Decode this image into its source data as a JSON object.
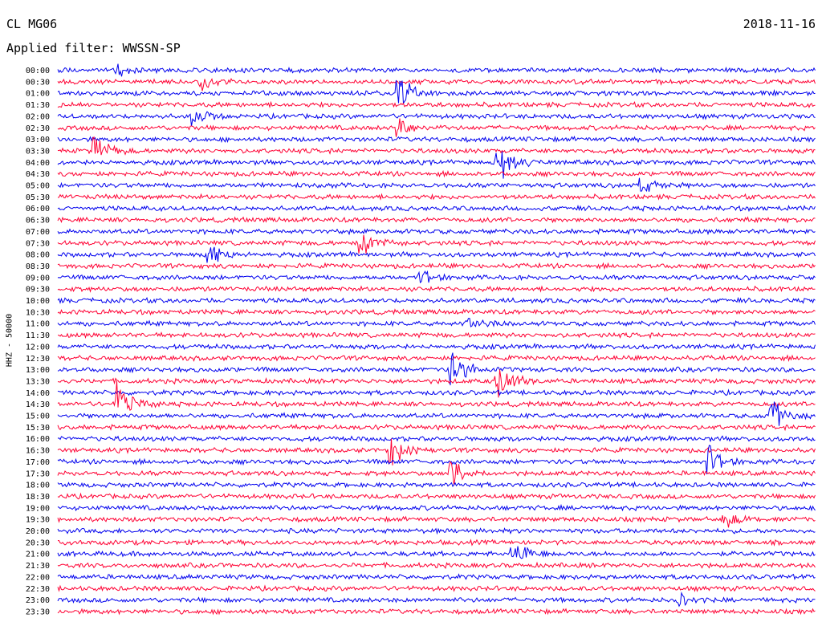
{
  "header": {
    "station": "CL MG06",
    "date": "2018-11-16",
    "filter": "Applied filter: WWSSN-SP"
  },
  "colors": {
    "blue": "#0000ee",
    "red": "#ff0033"
  },
  "chart_data": {
    "type": "line",
    "title": "CL MG06",
    "subtitle": "Applied filter: WWSSN-SP",
    "ylabel": "HHZ - 50000",
    "xlabel": "",
    "tick_labels": [
      "00:00",
      "00:30",
      "01:00",
      "01:30",
      "02:00",
      "02:30",
      "03:00",
      "03:30",
      "04:00",
      "04:30",
      "05:00",
      "05:30",
      "06:00",
      "06:30",
      "07:00",
      "07:30",
      "08:00",
      "08:30",
      "09:00",
      "09:30",
      "10:00",
      "10:30",
      "11:00",
      "11:30",
      "12:00",
      "12:30",
      "13:00",
      "13:30",
      "14:00",
      "14:30",
      "15:00",
      "15:30",
      "16:00",
      "16:30",
      "17:00",
      "17:30",
      "18:00",
      "18:30",
      "19:00",
      "19:30",
      "20:00",
      "20:30",
      "21:00",
      "21:30",
      "22:00",
      "22:30",
      "23:00",
      "23:30"
    ],
    "trace_colors": [
      "blue",
      "red"
    ],
    "grid": false,
    "legend": "none",
    "note_events": [
      {
        "row": 0,
        "x": 0.08,
        "amp": 8
      },
      {
        "row": 1,
        "x": 0.19,
        "amp": 12
      },
      {
        "row": 2,
        "x": 0.45,
        "amp": 30
      },
      {
        "row": 4,
        "x": 0.18,
        "amp": 14
      },
      {
        "row": 5,
        "x": 0.45,
        "amp": 18
      },
      {
        "row": 7,
        "x": 0.05,
        "amp": 22
      },
      {
        "row": 8,
        "x": 0.58,
        "amp": 40
      },
      {
        "row": 10,
        "x": 0.77,
        "amp": 12
      },
      {
        "row": 15,
        "x": 0.4,
        "amp": 26
      },
      {
        "row": 16,
        "x": 0.2,
        "amp": 20
      },
      {
        "row": 18,
        "x": 0.48,
        "amp": 12
      },
      {
        "row": 22,
        "x": 0.54,
        "amp": 14
      },
      {
        "row": 26,
        "x": 0.52,
        "amp": 34
      },
      {
        "row": 27,
        "x": 0.58,
        "amp": 40
      },
      {
        "row": 29,
        "x": 0.08,
        "amp": 30
      },
      {
        "row": 30,
        "x": 0.94,
        "amp": 30
      },
      {
        "row": 33,
        "x": 0.44,
        "amp": 24
      },
      {
        "row": 34,
        "x": 0.86,
        "amp": 22
      },
      {
        "row": 35,
        "x": 0.52,
        "amp": 26
      },
      {
        "row": 39,
        "x": 0.88,
        "amp": 12
      },
      {
        "row": 42,
        "x": 0.6,
        "amp": 24
      },
      {
        "row": 46,
        "x": 0.82,
        "amp": 10
      }
    ]
  }
}
